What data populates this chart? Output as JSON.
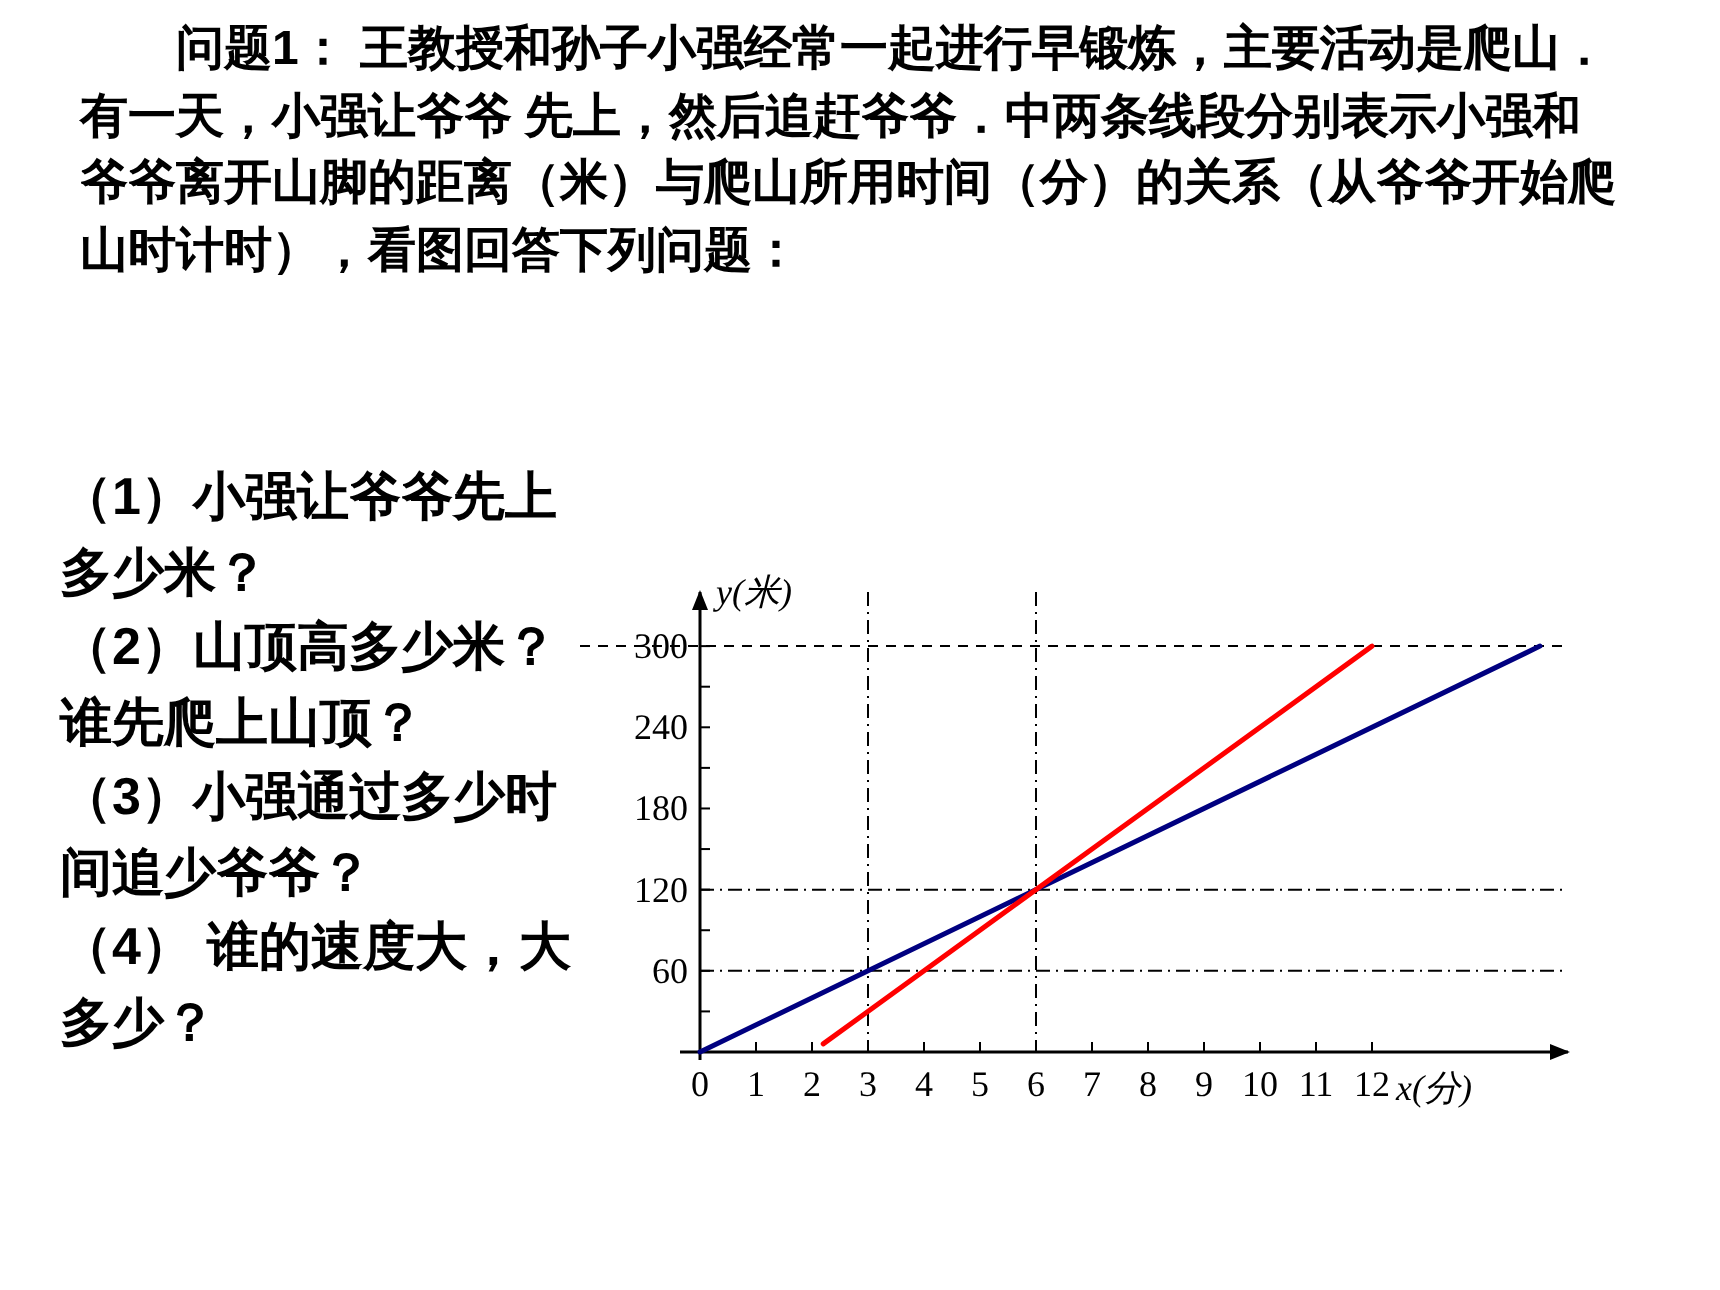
{
  "chart_data": {
    "type": "line",
    "title": "问题1： 王教授和孙子小强经常一起进行早锻炼，主要活动是爬山．有一天，小强让爷爷 先上，然后追赶爷爷．中两条线段分别表示小强和爷爷离开山脚的距离（米）与爬山所用时间（分）的关系（从爷爷开始爬山时计时），看图回答下列问题：",
    "annotations": [
      "（1）小强让爷爷先上多少米？",
      "（2）山顶高多少米？谁先爬上山顶？",
      "（3）小强通过多少时间追少爷爷？",
      "（4） 谁的速度大，大多少？"
    ],
    "xlabel": "x(分)",
    "ylabel": "y(米)",
    "series": [
      {
        "color": "#000080",
        "x": [
          0,
          15
        ],
        "values": [
          0,
          300
        ]
      },
      {
        "color": "#ff0000",
        "x": [
          2.2,
          12
        ],
        "values": [
          6,
          300
        ]
      }
    ],
    "xlim": [
      0,
      15.5
    ],
    "ylim": [
      0,
      340
    ],
    "xticks": [
      0,
      1,
      2,
      3,
      4,
      5,
      6,
      7,
      8,
      9,
      10,
      11,
      12
    ],
    "yticks": [
      {
        "value": 30,
        "label": null
      },
      60,
      {
        "value": 90,
        "label": null
      },
      120,
      {
        "value": 150,
        "label": null
      },
      180,
      {
        "value": 210,
        "label": null
      },
      240,
      {
        "value": 270,
        "label": null
      },
      300
    ],
    "ref_lines": [
      {
        "axis": "y",
        "value": 300,
        "line_style": "dashed"
      },
      {
        "axis": "y",
        "value": 120,
        "line_style": "dotted"
      },
      {
        "axis": "y",
        "value": 60,
        "line_style": "dotted"
      },
      {
        "axis": "x",
        "value": 3,
        "line_style": "dotted"
      },
      {
        "axis": "x",
        "value": 6,
        "line_style": "dotted"
      }
    ],
    "grid": false
  }
}
